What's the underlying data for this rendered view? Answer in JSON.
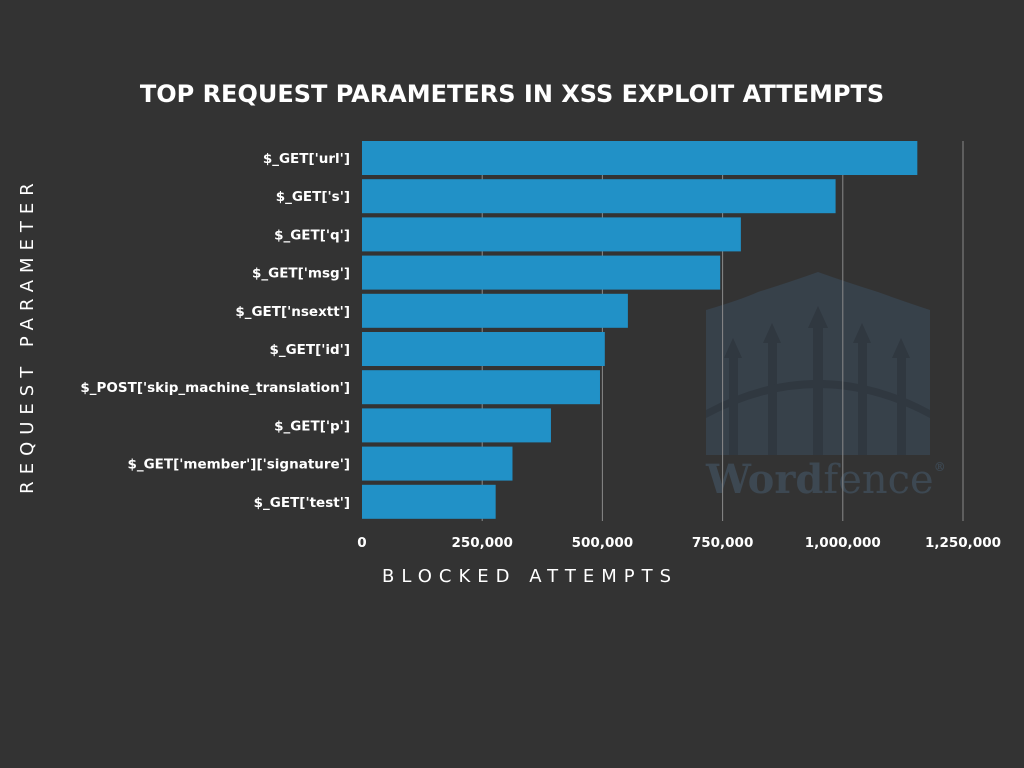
{
  "chart_data": {
    "type": "bar",
    "orientation": "horizontal",
    "title": "TOP REQUEST PARAMETERS IN XSS EXPLOIT ATTEMPTS",
    "xlabel": "BLOCKED ATTEMPTS",
    "ylabel": "REQUEST PARAMETER",
    "categories": [
      "$_GET['url']",
      "$_GET['s']",
      "$_GET['q']",
      "$_GET['msg']",
      "$_GET['nsextt']",
      "$_GET['id']",
      "$_POST['skip_machine_translation']",
      "$_GET['p']",
      "$_GET['member']['signature']",
      "$_GET['test']"
    ],
    "values": [
      1155000,
      985000,
      788000,
      745000,
      553000,
      505000,
      495000,
      393000,
      313000,
      278000
    ],
    "xlim": [
      0,
      1250000
    ],
    "xticks": [
      0,
      250000,
      500000,
      750000,
      1000000,
      1250000
    ],
    "xtick_labels": [
      "0",
      "250,000",
      "500,000",
      "750,000",
      "1,000,000",
      "1,250,000"
    ],
    "grid": true,
    "bar_color": "#2191c7",
    "background_color": "#333333"
  },
  "watermark": {
    "text_1": "Word",
    "text_2": "fence",
    "mark": "®"
  }
}
